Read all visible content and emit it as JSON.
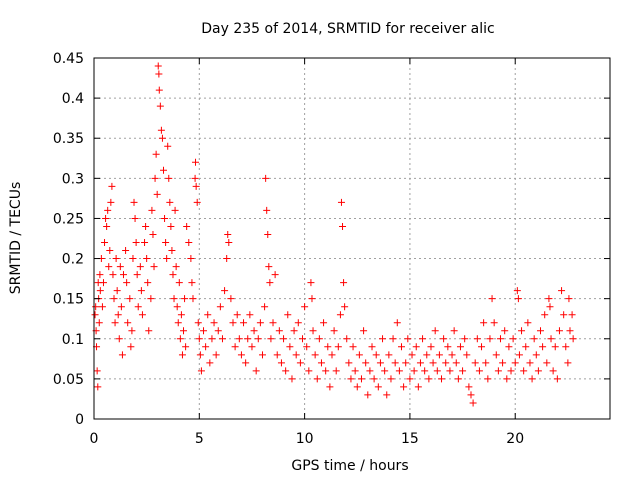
{
  "colors": {
    "series": "#ff0000",
    "grid": "#a0a0a0",
    "axis": "#000000"
  },
  "chart_data": {
    "type": "scatter",
    "title": "Day 235 of 2014, SRMTID for receiver alic",
    "xlabel": "GPS time / hours",
    "ylabel": "SRMTID / TECUs",
    "xlim": [
      0,
      24.5
    ],
    "ylim": [
      0,
      0.45
    ],
    "xticks": [
      0,
      5,
      10,
      15,
      20
    ],
    "xtick_labels": [
      "0",
      "5",
      "10",
      "15",
      "20"
    ],
    "yticks": [
      0,
      0.05,
      0.1,
      0.15,
      0.2,
      0.25,
      0.3,
      0.35,
      0.4,
      0.45
    ],
    "ytick_labels": [
      "0",
      "0.05",
      "0.1",
      "0.15",
      "0.2",
      "0.25",
      "0.3",
      "0.35",
      "0.4",
      "0.45"
    ],
    "grid": true,
    "marker": "plus",
    "series": [
      {
        "name": "SRMTID",
        "points": [
          [
            0.05,
            0.13
          ],
          [
            0.08,
            0.14
          ],
          [
            0.1,
            0.11
          ],
          [
            0.12,
            0.09
          ],
          [
            0.15,
            0.06
          ],
          [
            0.18,
            0.04
          ],
          [
            0.2,
            0.17
          ],
          [
            0.22,
            0.15
          ],
          [
            0.25,
            0.12
          ],
          [
            0.28,
            0.18
          ],
          [
            0.3,
            0.16
          ],
          [
            0.35,
            0.2
          ],
          [
            0.4,
            0.14
          ],
          [
            0.45,
            0.17
          ],
          [
            0.5,
            0.22
          ],
          [
            0.55,
            0.25
          ],
          [
            0.6,
            0.24
          ],
          [
            0.65,
            0.26
          ],
          [
            0.7,
            0.19
          ],
          [
            0.75,
            0.21
          ],
          [
            0.8,
            0.27
          ],
          [
            0.85,
            0.29
          ],
          [
            0.9,
            0.18
          ],
          [
            0.95,
            0.15
          ],
          [
            1.0,
            0.12
          ],
          [
            1.05,
            0.2
          ],
          [
            1.1,
            0.16
          ],
          [
            1.15,
            0.13
          ],
          [
            1.2,
            0.1
          ],
          [
            1.25,
            0.19
          ],
          [
            1.3,
            0.14
          ],
          [
            1.35,
            0.08
          ],
          [
            1.4,
            0.18
          ],
          [
            1.5,
            0.21
          ],
          [
            1.55,
            0.17
          ],
          [
            1.6,
            0.12
          ],
          [
            1.7,
            0.15
          ],
          [
            1.75,
            0.09
          ],
          [
            1.8,
            0.11
          ],
          [
            1.85,
            0.2
          ],
          [
            1.9,
            0.27
          ],
          [
            1.95,
            0.25
          ],
          [
            2.0,
            0.22
          ],
          [
            2.05,
            0.18
          ],
          [
            2.1,
            0.14
          ],
          [
            2.2,
            0.19
          ],
          [
            2.25,
            0.16
          ],
          [
            2.3,
            0.13
          ],
          [
            2.4,
            0.22
          ],
          [
            2.45,
            0.24
          ],
          [
            2.5,
            0.2
          ],
          [
            2.55,
            0.17
          ],
          [
            2.6,
            0.11
          ],
          [
            2.7,
            0.15
          ],
          [
            2.75,
            0.26
          ],
          [
            2.8,
            0.23
          ],
          [
            2.85,
            0.19
          ],
          [
            2.9,
            0.3
          ],
          [
            2.95,
            0.33
          ],
          [
            3.0,
            0.28
          ],
          [
            3.05,
            0.44
          ],
          [
            3.08,
            0.43
          ],
          [
            3.1,
            0.41
          ],
          [
            3.15,
            0.39
          ],
          [
            3.2,
            0.36
          ],
          [
            3.25,
            0.35
          ],
          [
            3.3,
            0.31
          ],
          [
            3.35,
            0.25
          ],
          [
            3.4,
            0.22
          ],
          [
            3.45,
            0.2
          ],
          [
            3.5,
            0.34
          ],
          [
            3.55,
            0.3
          ],
          [
            3.6,
            0.27
          ],
          [
            3.65,
            0.24
          ],
          [
            3.7,
            0.21
          ],
          [
            3.75,
            0.18
          ],
          [
            3.8,
            0.15
          ],
          [
            3.85,
            0.26
          ],
          [
            3.9,
            0.19
          ],
          [
            3.95,
            0.14
          ],
          [
            4.0,
            0.12
          ],
          [
            4.05,
            0.17
          ],
          [
            4.1,
            0.1
          ],
          [
            4.15,
            0.13
          ],
          [
            4.2,
            0.08
          ],
          [
            4.25,
            0.11
          ],
          [
            4.3,
            0.15
          ],
          [
            4.35,
            0.09
          ],
          [
            4.4,
            0.24
          ],
          [
            4.5,
            0.22
          ],
          [
            4.6,
            0.2
          ],
          [
            4.65,
            0.17
          ],
          [
            4.7,
            0.15
          ],
          [
            4.8,
            0.3
          ],
          [
            4.82,
            0.32
          ],
          [
            4.85,
            0.29
          ],
          [
            4.9,
            0.27
          ],
          [
            4.95,
            0.12
          ],
          [
            5.0,
            0.1
          ],
          [
            5.05,
            0.08
          ],
          [
            5.1,
            0.06
          ],
          [
            5.2,
            0.11
          ],
          [
            5.3,
            0.09
          ],
          [
            5.4,
            0.13
          ],
          [
            5.5,
            0.07
          ],
          [
            5.6,
            0.1
          ],
          [
            5.7,
            0.12
          ],
          [
            5.8,
            0.08
          ],
          [
            5.9,
            0.11
          ],
          [
            6.0,
            0.14
          ],
          [
            6.1,
            0.1
          ],
          [
            6.2,
            0.16
          ],
          [
            6.3,
            0.2
          ],
          [
            6.35,
            0.23
          ],
          [
            6.4,
            0.22
          ],
          [
            6.5,
            0.15
          ],
          [
            6.6,
            0.12
          ],
          [
            6.7,
            0.09
          ],
          [
            6.8,
            0.13
          ],
          [
            6.9,
            0.1
          ],
          [
            7.0,
            0.08
          ],
          [
            7.1,
            0.12
          ],
          [
            7.2,
            0.07
          ],
          [
            7.3,
            0.1
          ],
          [
            7.4,
            0.13
          ],
          [
            7.5,
            0.09
          ],
          [
            7.6,
            0.11
          ],
          [
            7.7,
            0.06
          ],
          [
            7.8,
            0.1
          ],
          [
            7.9,
            0.12
          ],
          [
            8.0,
            0.08
          ],
          [
            8.1,
            0.14
          ],
          [
            8.15,
            0.3
          ],
          [
            8.2,
            0.26
          ],
          [
            8.25,
            0.23
          ],
          [
            8.3,
            0.19
          ],
          [
            8.35,
            0.17
          ],
          [
            8.4,
            0.1
          ],
          [
            8.5,
            0.12
          ],
          [
            8.6,
            0.18
          ],
          [
            8.7,
            0.08
          ],
          [
            8.8,
            0.11
          ],
          [
            8.9,
            0.07
          ],
          [
            9.0,
            0.1
          ],
          [
            9.1,
            0.06
          ],
          [
            9.2,
            0.13
          ],
          [
            9.3,
            0.09
          ],
          [
            9.4,
            0.05
          ],
          [
            9.5,
            0.11
          ],
          [
            9.6,
            0.08
          ],
          [
            9.7,
            0.12
          ],
          [
            9.8,
            0.07
          ],
          [
            9.9,
            0.1
          ],
          [
            10.0,
            0.14
          ],
          [
            10.1,
            0.09
          ],
          [
            10.2,
            0.06
          ],
          [
            10.3,
            0.17
          ],
          [
            10.35,
            0.15
          ],
          [
            10.4,
            0.11
          ],
          [
            10.5,
            0.08
          ],
          [
            10.6,
            0.05
          ],
          [
            10.7,
            0.1
          ],
          [
            10.8,
            0.07
          ],
          [
            10.9,
            0.12
          ],
          [
            11.0,
            0.06
          ],
          [
            11.1,
            0.09
          ],
          [
            11.2,
            0.04
          ],
          [
            11.3,
            0.08
          ],
          [
            11.4,
            0.11
          ],
          [
            11.5,
            0.06
          ],
          [
            11.6,
            0.09
          ],
          [
            11.7,
            0.13
          ],
          [
            11.75,
            0.27
          ],
          [
            11.8,
            0.24
          ],
          [
            11.85,
            0.17
          ],
          [
            11.9,
            0.14
          ],
          [
            12.0,
            0.1
          ],
          [
            12.1,
            0.07
          ],
          [
            12.2,
            0.05
          ],
          [
            12.3,
            0.09
          ],
          [
            12.4,
            0.06
          ],
          [
            12.5,
            0.04
          ],
          [
            12.6,
            0.08
          ],
          [
            12.7,
            0.05
          ],
          [
            12.8,
            0.11
          ],
          [
            12.9,
            0.07
          ],
          [
            13.0,
            0.03
          ],
          [
            13.1,
            0.06
          ],
          [
            13.2,
            0.09
          ],
          [
            13.3,
            0.05
          ],
          [
            13.4,
            0.08
          ],
          [
            13.5,
            0.04
          ],
          [
            13.6,
            0.07
          ],
          [
            13.7,
            0.1
          ],
          [
            13.8,
            0.06
          ],
          [
            13.9,
            0.03
          ],
          [
            14.0,
            0.08
          ],
          [
            14.1,
            0.05
          ],
          [
            14.2,
            0.1
          ],
          [
            14.3,
            0.07
          ],
          [
            14.4,
            0.12
          ],
          [
            14.5,
            0.06
          ],
          [
            14.6,
            0.09
          ],
          [
            14.7,
            0.04
          ],
          [
            14.8,
            0.07
          ],
          [
            14.9,
            0.1
          ],
          [
            15.0,
            0.05
          ],
          [
            15.1,
            0.08
          ],
          [
            15.2,
            0.06
          ],
          [
            15.3,
            0.09
          ],
          [
            15.4,
            0.04
          ],
          [
            15.5,
            0.07
          ],
          [
            15.6,
            0.1
          ],
          [
            15.7,
            0.06
          ],
          [
            15.8,
            0.08
          ],
          [
            15.9,
            0.05
          ],
          [
            16.0,
            0.09
          ],
          [
            16.1,
            0.07
          ],
          [
            16.2,
            0.11
          ],
          [
            16.3,
            0.06
          ],
          [
            16.4,
            0.08
          ],
          [
            16.5,
            0.05
          ],
          [
            16.6,
            0.1
          ],
          [
            16.7,
            0.07
          ],
          [
            16.8,
            0.09
          ],
          [
            16.9,
            0.06
          ],
          [
            17.0,
            0.08
          ],
          [
            17.1,
            0.11
          ],
          [
            17.2,
            0.07
          ],
          [
            17.3,
            0.05
          ],
          [
            17.4,
            0.09
          ],
          [
            17.5,
            0.06
          ],
          [
            17.6,
            0.1
          ],
          [
            17.7,
            0.08
          ],
          [
            17.8,
            0.04
          ],
          [
            17.9,
            0.03
          ],
          [
            18.0,
            0.02
          ],
          [
            18.1,
            0.07
          ],
          [
            18.2,
            0.1
          ],
          [
            18.3,
            0.06
          ],
          [
            18.4,
            0.09
          ],
          [
            18.5,
            0.12
          ],
          [
            18.6,
            0.07
          ],
          [
            18.7,
            0.05
          ],
          [
            18.8,
            0.1
          ],
          [
            18.9,
            0.15
          ],
          [
            19.0,
            0.12
          ],
          [
            19.1,
            0.08
          ],
          [
            19.2,
            0.06
          ],
          [
            19.3,
            0.1
          ],
          [
            19.4,
            0.07
          ],
          [
            19.5,
            0.11
          ],
          [
            19.6,
            0.05
          ],
          [
            19.7,
            0.09
          ],
          [
            19.8,
            0.06
          ],
          [
            19.9,
            0.1
          ],
          [
            20.0,
            0.07
          ],
          [
            20.1,
            0.16
          ],
          [
            20.15,
            0.15
          ],
          [
            20.2,
            0.08
          ],
          [
            20.3,
            0.11
          ],
          [
            20.4,
            0.06
          ],
          [
            20.5,
            0.09
          ],
          [
            20.6,
            0.12
          ],
          [
            20.7,
            0.07
          ],
          [
            20.8,
            0.05
          ],
          [
            20.9,
            0.1
          ],
          [
            21.0,
            0.08
          ],
          [
            21.1,
            0.06
          ],
          [
            21.2,
            0.11
          ],
          [
            21.3,
            0.09
          ],
          [
            21.4,
            0.13
          ],
          [
            21.5,
            0.07
          ],
          [
            21.6,
            0.15
          ],
          [
            21.65,
            0.14
          ],
          [
            21.7,
            0.1
          ],
          [
            21.8,
            0.06
          ],
          [
            21.9,
            0.09
          ],
          [
            22.0,
            0.05
          ],
          [
            22.1,
            0.11
          ],
          [
            22.2,
            0.16
          ],
          [
            22.3,
            0.13
          ],
          [
            22.4,
            0.09
          ],
          [
            22.5,
            0.07
          ],
          [
            22.55,
            0.15
          ],
          [
            22.6,
            0.11
          ],
          [
            22.7,
            0.13
          ],
          [
            22.75,
            0.1
          ]
        ]
      }
    ]
  }
}
